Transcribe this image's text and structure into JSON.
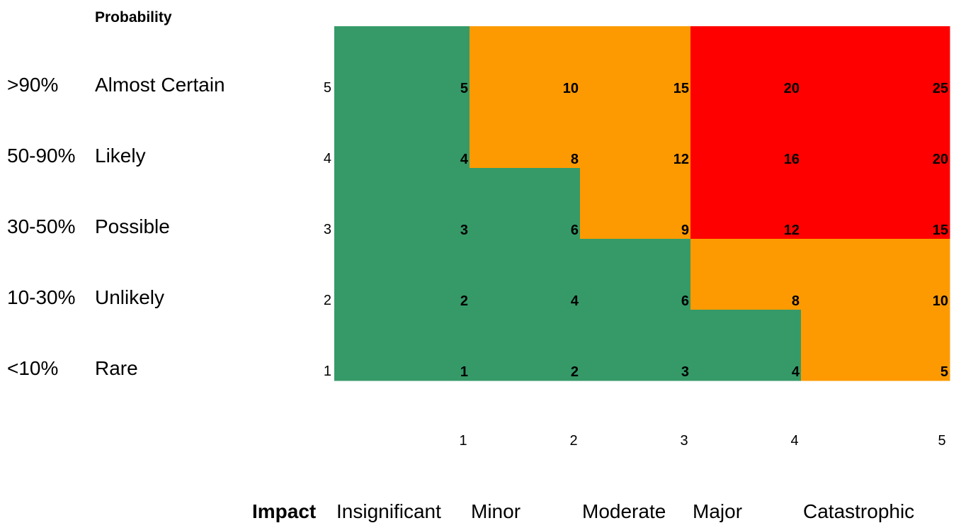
{
  "chart_data": {
    "type": "heatmap",
    "title": "",
    "ylabel": "Probability",
    "xlabel": "Impact",
    "rows": [
      {
        "level": 5,
        "percent": ">90%",
        "label": "Almost Certain",
        "values": [
          5,
          10,
          15,
          20,
          25
        ]
      },
      {
        "level": 4,
        "percent": "50-90%",
        "label": "Likely",
        "values": [
          4,
          8,
          12,
          16,
          20
        ]
      },
      {
        "level": 3,
        "percent": "30-50%",
        "label": "Possible",
        "values": [
          3,
          6,
          9,
          12,
          15
        ]
      },
      {
        "level": 2,
        "percent": "10-30%",
        "label": "Unlikely",
        "values": [
          2,
          4,
          6,
          8,
          10
        ]
      },
      {
        "level": 1,
        "percent": "<10%",
        "label": "Rare",
        "values": [
          1,
          2,
          3,
          4,
          5
        ]
      }
    ],
    "columns": [
      {
        "level": 1,
        "label": "Insignificant"
      },
      {
        "level": 2,
        "label": "Minor"
      },
      {
        "level": 3,
        "label": "Moderate"
      },
      {
        "level": 4,
        "label": "Major"
      },
      {
        "level": 5,
        "label": "Catastrophic"
      }
    ],
    "colors": {
      "low": "#359a68",
      "medium": "#fd9a01",
      "high": "#ff0000"
    },
    "bands": [
      [
        "low",
        "medium",
        "medium",
        "high",
        "high"
      ],
      [
        "low",
        "medium",
        "medium",
        "high",
        "high"
      ],
      [
        "low",
        "low",
        "medium",
        "high",
        "high"
      ],
      [
        "low",
        "low",
        "low",
        "medium",
        "medium"
      ],
      [
        "low",
        "low",
        "low",
        "low",
        "medium"
      ]
    ]
  }
}
